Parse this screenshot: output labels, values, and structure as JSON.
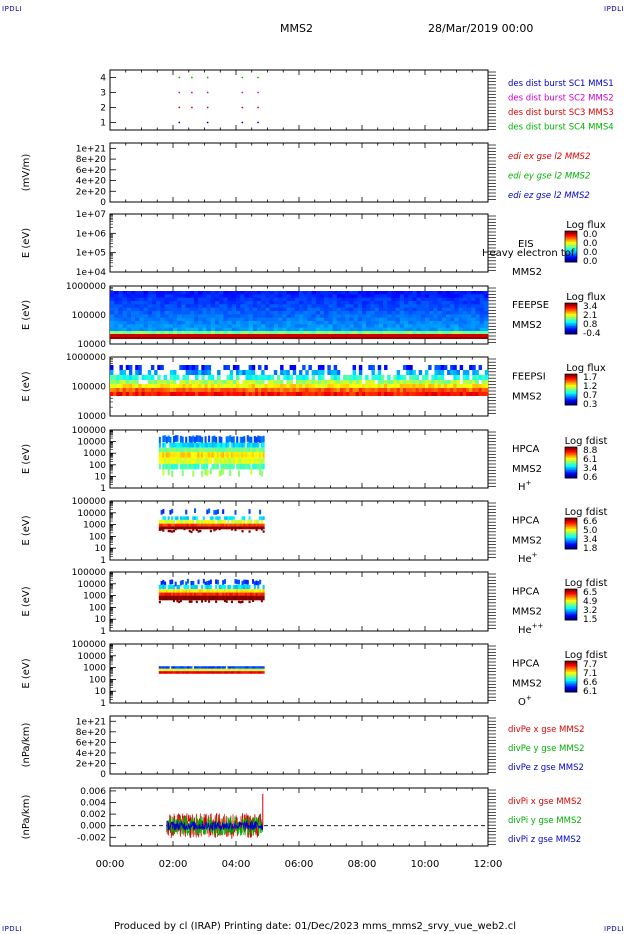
{
  "corner_label": "IPDLI",
  "header": {
    "spacecraft": "MMS2",
    "date": "28/Mar/2019 00:00"
  },
  "footer": {
    "text": "Produced by cl (IRAP)   Printing date: 01/Dec/2023   mms_mms2_srvy_vue_web2.cl"
  },
  "colors": {
    "red": "#e00000",
    "green": "#00b000",
    "blue": "#0000cc",
    "magenta": "#cc00cc"
  },
  "chart_data": [
    {
      "type": "scatter",
      "panel": "burst",
      "x_range": [
        "00:00",
        "12:00"
      ],
      "yticks": [
        "4",
        "3",
        "2",
        "1"
      ],
      "ylim": [
        0.5,
        4.5
      ],
      "series": [
        {
          "name": "des dist burst SC1 MMS1",
          "color": "#0000cc",
          "y": 1,
          "x_hours": [
            2.2,
            3.1,
            4.2,
            4.7
          ]
        },
        {
          "name": "des dist burst SC2 MMS2",
          "color": "#cc00cc",
          "y": 3,
          "x_hours": [
            2.2,
            2.6,
            3.1,
            4.2,
            4.7
          ]
        },
        {
          "name": "des dist burst SC3 MMS3",
          "color": "#e00000",
          "y": 2,
          "x_hours": [
            2.2,
            2.6,
            3.1,
            4.2,
            4.7
          ]
        },
        {
          "name": "des dist burst SC4 MMS4",
          "color": "#00b000",
          "y": 4,
          "x_hours": [
            2.2,
            2.6,
            3.1,
            4.2,
            4.7
          ]
        }
      ]
    },
    {
      "type": "line",
      "panel": "edi",
      "ylabel": "(mV/m)",
      "yticks": [
        "1e+21",
        "8e+20",
        "6e+20",
        "4e+20",
        "2e+20",
        "0"
      ],
      "ylim": [
        0,
        1.1e+21
      ],
      "series": [
        {
          "name": "edi ex gse l2 MMS2",
          "color": "#e00000"
        },
        {
          "name": "edi ey gse l2 MMS2",
          "color": "#00b000"
        },
        {
          "name": "edi ez gse l2 MMS2",
          "color": "#0000cc"
        }
      ]
    },
    {
      "type": "heatmap",
      "panel": "eis",
      "ylabel": "E (eV)",
      "yticks": [
        "1e+07",
        "1e+06",
        "1e+05",
        "1e+04"
      ],
      "ylim": [
        10000,
        10000000
      ],
      "labels": [
        "EIS",
        "MMS2"
      ],
      "overlay": "Heavy electron tof",
      "colorbar": {
        "title": "Log flux",
        "ticks": [
          "0.0",
          "0.0",
          "0.0",
          "0.0"
        ]
      }
    },
    {
      "type": "heatmap",
      "panel": "feepse",
      "ylabel": "E (eV)",
      "yticks": [
        "1000000",
        "100000",
        "10000"
      ],
      "ylim": [
        10000,
        1000000
      ],
      "labels": [
        "FEEPSE",
        "MMS2"
      ],
      "colorbar": {
        "title": "Log flux",
        "ticks": [
          "3.4",
          "2.1",
          "0.8",
          "-0.4"
        ]
      }
    },
    {
      "type": "heatmap",
      "panel": "feepsi",
      "ylabel": "E (eV)",
      "yticks": [
        "1000000",
        "100000",
        "10000"
      ],
      "ylim": [
        10000,
        1000000
      ],
      "labels": [
        "FEEPSI",
        "MMS2"
      ],
      "colorbar": {
        "title": "Log flux",
        "ticks": [
          "1.7",
          "1.2",
          "0.7",
          "0.3"
        ]
      }
    },
    {
      "type": "heatmap",
      "panel": "hpca_h",
      "ylabel": "E (eV)",
      "yticks": [
        "100000",
        "10000",
        "1000",
        "100",
        "10",
        "1"
      ],
      "ylim": [
        1,
        100000
      ],
      "labels": [
        "HPCA",
        "MMS2"
      ],
      "species": {
        "base": "H",
        "sup": "+"
      },
      "colorbar": {
        "title": "Log fdist",
        "ticks": [
          "8.8",
          "6.1",
          "3.4",
          "0.6"
        ]
      }
    },
    {
      "type": "heatmap",
      "panel": "hpca_he",
      "ylabel": "E (eV)",
      "yticks": [
        "100000",
        "10000",
        "1000",
        "100",
        "10",
        "1"
      ],
      "ylim": [
        1,
        100000
      ],
      "labels": [
        "HPCA",
        "MMS2"
      ],
      "species": {
        "base": "He",
        "sup": "+"
      },
      "colorbar": {
        "title": "Log fdist",
        "ticks": [
          "6.6",
          "5.0",
          "3.4",
          "1.8"
        ]
      }
    },
    {
      "type": "heatmap",
      "panel": "hpca_hepp",
      "ylabel": "E (eV)",
      "yticks": [
        "100000",
        "10000",
        "1000",
        "100",
        "10",
        "1"
      ],
      "ylim": [
        1,
        100000
      ],
      "labels": [
        "HPCA",
        "MMS2"
      ],
      "species": {
        "base": "He",
        "sup": "++"
      },
      "colorbar": {
        "title": "Log fdist",
        "ticks": [
          "6.5",
          "4.9",
          "3.2",
          "1.5"
        ]
      }
    },
    {
      "type": "heatmap",
      "panel": "hpca_o",
      "ylabel": "E (eV)",
      "yticks": [
        "100000",
        "10000",
        "1000",
        "100",
        "10",
        "1"
      ],
      "ylim": [
        1,
        100000
      ],
      "labels": [
        "HPCA",
        "MMS2"
      ],
      "species": {
        "base": "O",
        "sup": "+"
      },
      "colorbar": {
        "title": "Log fdist",
        "ticks": [
          "7.7",
          "7.1",
          "6.6",
          "6.1"
        ]
      }
    },
    {
      "type": "line",
      "panel": "divpe",
      "ylabel": "(nPa/km)",
      "yticks": [
        "1e+21",
        "8e+20",
        "6e+20",
        "4e+20",
        "2e+20",
        "0"
      ],
      "ylim": [
        0,
        1.1e+21
      ],
      "series": [
        {
          "name": "divPe x gse MMS2",
          "color": "#e00000"
        },
        {
          "name": "divPe y gse MMS2",
          "color": "#00b000"
        },
        {
          "name": "divPe z gse MMS2",
          "color": "#0000cc"
        }
      ]
    },
    {
      "type": "line",
      "panel": "divpi",
      "ylabel": "(nPa/km)",
      "yticks": [
        "0.006",
        "0.004",
        "0.002",
        "0.000",
        "-0.002"
      ],
      "ylim": [
        -0.0035,
        0.0065
      ],
      "xticks": [
        "00:00",
        "02:00",
        "04:00",
        "06:00",
        "08:00",
        "10:00",
        "12:00"
      ],
      "series": [
        {
          "name": "divPi x gse MMS2",
          "color": "#e00000"
        },
        {
          "name": "divPi y gse MMS2",
          "color": "#00b000"
        },
        {
          "name": "divPi z gse MMS2",
          "color": "#0000cc"
        }
      ],
      "active_window_hours": [
        1.8,
        4.85
      ],
      "spike": {
        "x_hour": 4.85,
        "value": 0.0055
      }
    }
  ]
}
